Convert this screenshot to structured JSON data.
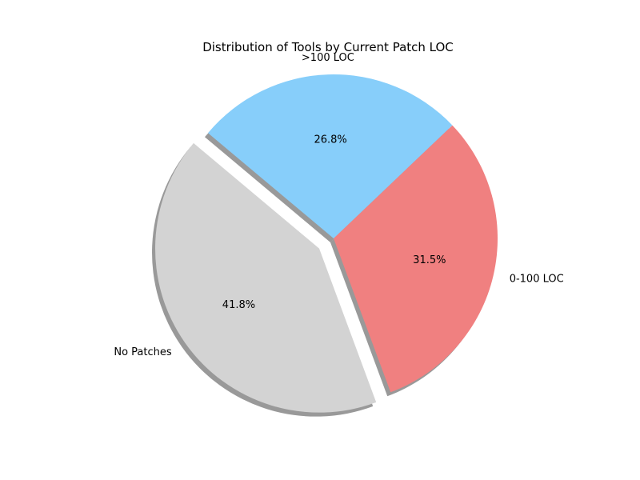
{
  "chart_data": {
    "type": "pie",
    "title": "Distribution of Tools by Current Patch LOC",
    "slices": [
      {
        "label": "No Patches",
        "value": 41.8,
        "pct_label": "41.8%",
        "color": "#d3d3d3",
        "exploded": true
      },
      {
        "label": "0-100 LOC",
        "value": 31.5,
        "pct_label": "31.5%",
        "color": "#f08080",
        "exploded": false
      },
      {
        "label": ">100 LOC",
        "value": 26.8,
        "pct_label": "26.8%",
        "color": "#87cefa",
        "exploded": false
      }
    ],
    "shadow": true,
    "shadow_color": "#000000"
  }
}
